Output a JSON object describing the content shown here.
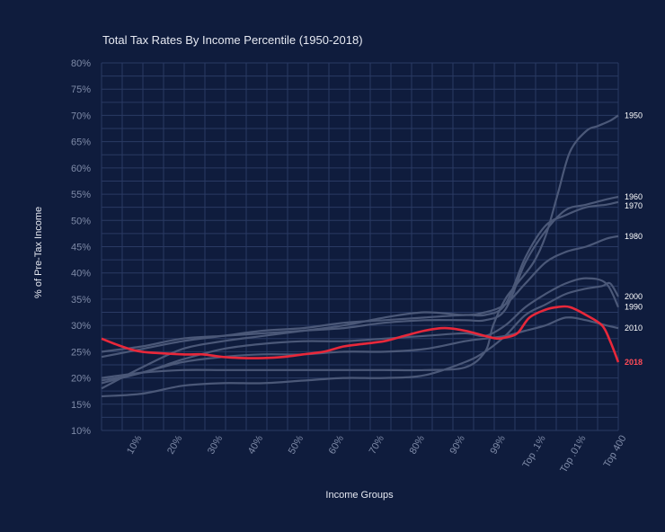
{
  "chart_data": {
    "type": "line",
    "title": "Total Tax Rates By Income Percentile (1950-2018)",
    "xlabel": "Income Groups",
    "ylabel": "% of Pre-Tax Income",
    "ylim": [
      10,
      80
    ],
    "y_ticks": [
      "10%",
      "15%",
      "20%",
      "25%",
      "30%",
      "35%",
      "40%",
      "45%",
      "50%",
      "55%",
      "60%",
      "65%",
      "70%",
      "75%",
      "80%"
    ],
    "x_ticks": [
      "10%",
      "20%",
      "30%",
      "40%",
      "50%",
      "60%",
      "70%",
      "80%",
      "90%",
      "99%",
      "Top .1%",
      "Top .01%",
      "Top 400"
    ],
    "highlight_series": "2018",
    "highlight_color": "#e8283a",
    "series": [
      {
        "name": "1950",
        "points": [
          [
            0,
            20
          ],
          [
            10,
            21
          ],
          [
            20,
            21.5
          ],
          [
            30,
            21.5
          ],
          [
            40,
            21.5
          ],
          [
            50,
            21.5
          ],
          [
            60,
            21.5
          ],
          [
            70,
            21.5
          ],
          [
            80,
            21.5
          ],
          [
            90,
            22
          ],
          [
            95,
            25
          ],
          [
            97,
            30
          ],
          [
            100,
            35
          ],
          [
            103,
            38
          ],
          [
            107,
            42
          ],
          [
            110,
            47
          ],
          [
            113,
            55
          ],
          [
            116,
            63
          ],
          [
            120,
            67
          ],
          [
            123,
            68
          ],
          [
            126,
            69
          ],
          [
            128,
            70
          ]
        ]
      },
      {
        "name": "1960",
        "points": [
          [
            0,
            25
          ],
          [
            10,
            26
          ],
          [
            20,
            27.5
          ],
          [
            30,
            28
          ],
          [
            40,
            28.5
          ],
          [
            50,
            29
          ],
          [
            60,
            29.5
          ],
          [
            70,
            30.5
          ],
          [
            80,
            31
          ],
          [
            90,
            31
          ],
          [
            95,
            31
          ],
          [
            100,
            33
          ],
          [
            105,
            42
          ],
          [
            110,
            48
          ],
          [
            115,
            52
          ],
          [
            120,
            53
          ],
          [
            125,
            54
          ],
          [
            128,
            54.5
          ]
        ]
      },
      {
        "name": "1970",
        "points": [
          [
            0,
            24
          ],
          [
            10,
            25.5
          ],
          [
            20,
            27
          ],
          [
            30,
            28
          ],
          [
            40,
            29
          ],
          [
            50,
            29.5
          ],
          [
            60,
            30.5
          ],
          [
            70,
            31
          ],
          [
            80,
            31.5
          ],
          [
            90,
            32
          ],
          [
            95,
            32
          ],
          [
            100,
            34
          ],
          [
            105,
            43
          ],
          [
            110,
            49
          ],
          [
            115,
            51
          ],
          [
            120,
            52.5
          ],
          [
            125,
            53
          ],
          [
            128,
            53.5
          ]
        ]
      },
      {
        "name": "1980",
        "points": [
          [
            0,
            18
          ],
          [
            10,
            22
          ],
          [
            20,
            25.5
          ],
          [
            30,
            27
          ],
          [
            40,
            28
          ],
          [
            50,
            29
          ],
          [
            60,
            30
          ],
          [
            70,
            31.5
          ],
          [
            80,
            32.5
          ],
          [
            90,
            32
          ],
          [
            95,
            32.5
          ],
          [
            100,
            34
          ],
          [
            105,
            38
          ],
          [
            110,
            42
          ],
          [
            115,
            44
          ],
          [
            120,
            45
          ],
          [
            125,
            46.5
          ],
          [
            128,
            47
          ]
        ]
      },
      {
        "name": "1990",
        "points": [
          [
            0,
            19.5
          ],
          [
            10,
            21
          ],
          [
            20,
            23.5
          ],
          [
            30,
            25.5
          ],
          [
            40,
            26.5
          ],
          [
            50,
            27
          ],
          [
            60,
            27
          ],
          [
            70,
            27.5
          ],
          [
            80,
            28
          ],
          [
            90,
            28.5
          ],
          [
            95,
            28
          ],
          [
            100,
            30
          ],
          [
            105,
            33.5
          ],
          [
            110,
            36
          ],
          [
            115,
            38
          ],
          [
            120,
            39
          ],
          [
            125,
            38
          ],
          [
            128,
            33.5
          ]
        ]
      },
      {
        "name": "2000",
        "points": [
          [
            0,
            16.5
          ],
          [
            10,
            17
          ],
          [
            20,
            18.5
          ],
          [
            30,
            19
          ],
          [
            40,
            19
          ],
          [
            50,
            19.5
          ],
          [
            60,
            20
          ],
          [
            70,
            20
          ],
          [
            80,
            20.5
          ],
          [
            90,
            23
          ],
          [
            95,
            25
          ],
          [
            100,
            28
          ],
          [
            105,
            32
          ],
          [
            110,
            34
          ],
          [
            115,
            36
          ],
          [
            120,
            37
          ],
          [
            124,
            37.5
          ],
          [
            126,
            38
          ],
          [
            128,
            35.5
          ]
        ]
      },
      {
        "name": "2010",
        "points": [
          [
            0,
            19
          ],
          [
            10,
            21
          ],
          [
            20,
            23
          ],
          [
            30,
            24
          ],
          [
            40,
            24.5
          ],
          [
            50,
            24.5
          ],
          [
            60,
            25
          ],
          [
            70,
            25
          ],
          [
            80,
            25.5
          ],
          [
            90,
            27
          ],
          [
            95,
            27.5
          ],
          [
            100,
            28
          ],
          [
            105,
            29
          ],
          [
            110,
            30
          ],
          [
            115,
            31.5
          ],
          [
            120,
            31
          ],
          [
            125,
            30
          ],
          [
            128,
            29.5
          ]
        ]
      },
      {
        "name": "2018",
        "points": [
          [
            0,
            27.5
          ],
          [
            5,
            26
          ],
          [
            10,
            25
          ],
          [
            20,
            24.5
          ],
          [
            25,
            24.5
          ],
          [
            30,
            24
          ],
          [
            35,
            23.8
          ],
          [
            40,
            23.8
          ],
          [
            45,
            24
          ],
          [
            50,
            24.5
          ],
          [
            55,
            25
          ],
          [
            60,
            26
          ],
          [
            65,
            26.5
          ],
          [
            70,
            27
          ],
          [
            75,
            28
          ],
          [
            80,
            29
          ],
          [
            85,
            29.5
          ],
          [
            90,
            29
          ],
          [
            95,
            28
          ],
          [
            98,
            27.5
          ],
          [
            100,
            27.7
          ],
          [
            103,
            28.5
          ],
          [
            106,
            31.5
          ],
          [
            110,
            33
          ],
          [
            113,
            33.5
          ],
          [
            116,
            33.5
          ],
          [
            120,
            32
          ],
          [
            124,
            30
          ],
          [
            126,
            27
          ],
          [
            128,
            23
          ]
        ]
      }
    ]
  }
}
